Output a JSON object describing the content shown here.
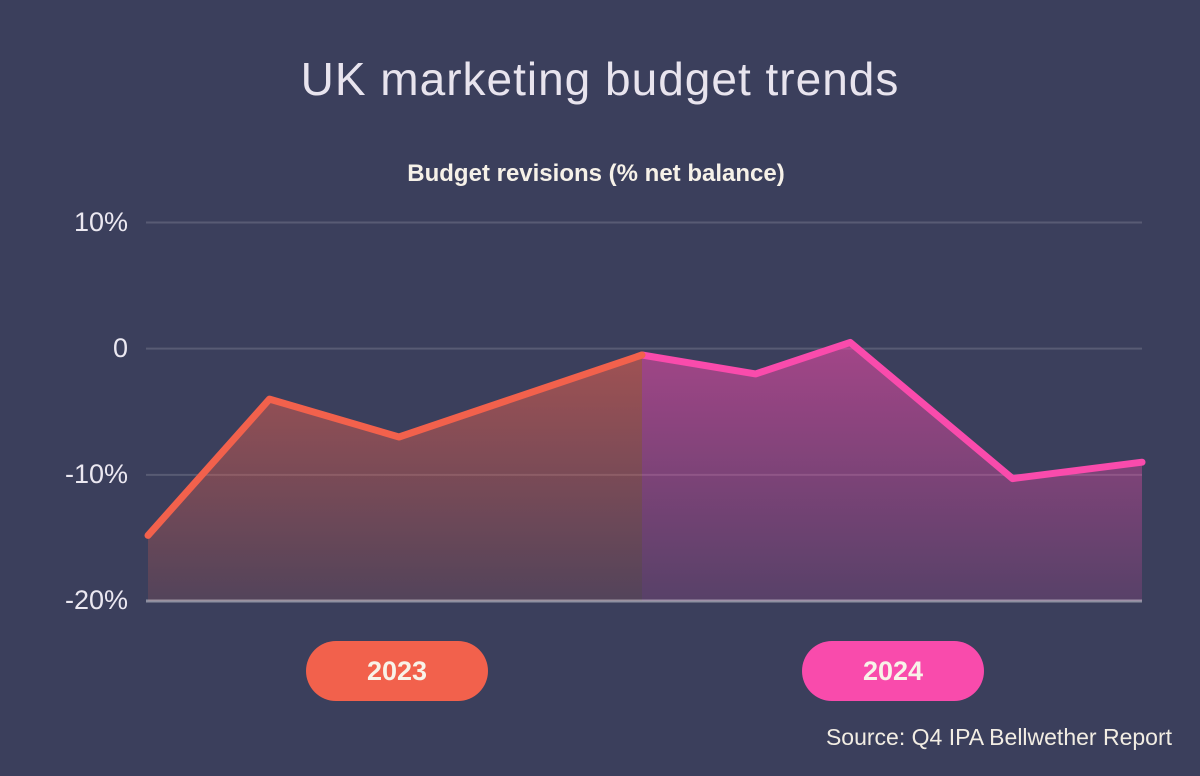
{
  "page": {
    "background": "#3b3f5c"
  },
  "header": {
    "title": "UK marketing budget trends",
    "subtitle": "Budget revisions (% net balance)"
  },
  "legend": [
    {
      "label": "2023",
      "color": "#f2614c"
    },
    {
      "label": "2024",
      "color": "#f94bac"
    }
  ],
  "source": {
    "text": "Source: Q4 IPA Bellwether Report"
  },
  "chart_data": {
    "type": "area",
    "title": "UK marketing budget trends",
    "subtitle": "Budget revisions (% net balance)",
    "ylabel": "Budget revisions (% net balance)",
    "ylim": [
      -20,
      10
    ],
    "grid": "horizontal",
    "legend_position": "bottom",
    "y_ticks": [
      {
        "value": 10,
        "label": "10%"
      },
      {
        "value": 0,
        "label": "0"
      },
      {
        "value": -10,
        "label": "-10%"
      },
      {
        "value": -20,
        "label": "-20%"
      }
    ],
    "series": [
      {
        "name": "2023",
        "color": "#f2614c",
        "x_fraction": [
          0.002,
          0.124,
          0.254,
          0.498
        ],
        "values": [
          -14.8,
          -4,
          -7,
          -0.5
        ]
      },
      {
        "name": "2024",
        "color": "#f94bac",
        "x_fraction": [
          0.498,
          0.612,
          0.707,
          0.87,
          1.0
        ],
        "values": [
          -0.5,
          -2,
          0.5,
          -10.3,
          -9
        ]
      }
    ],
    "source": "Source: Q4 IPA Bellwether Report"
  }
}
